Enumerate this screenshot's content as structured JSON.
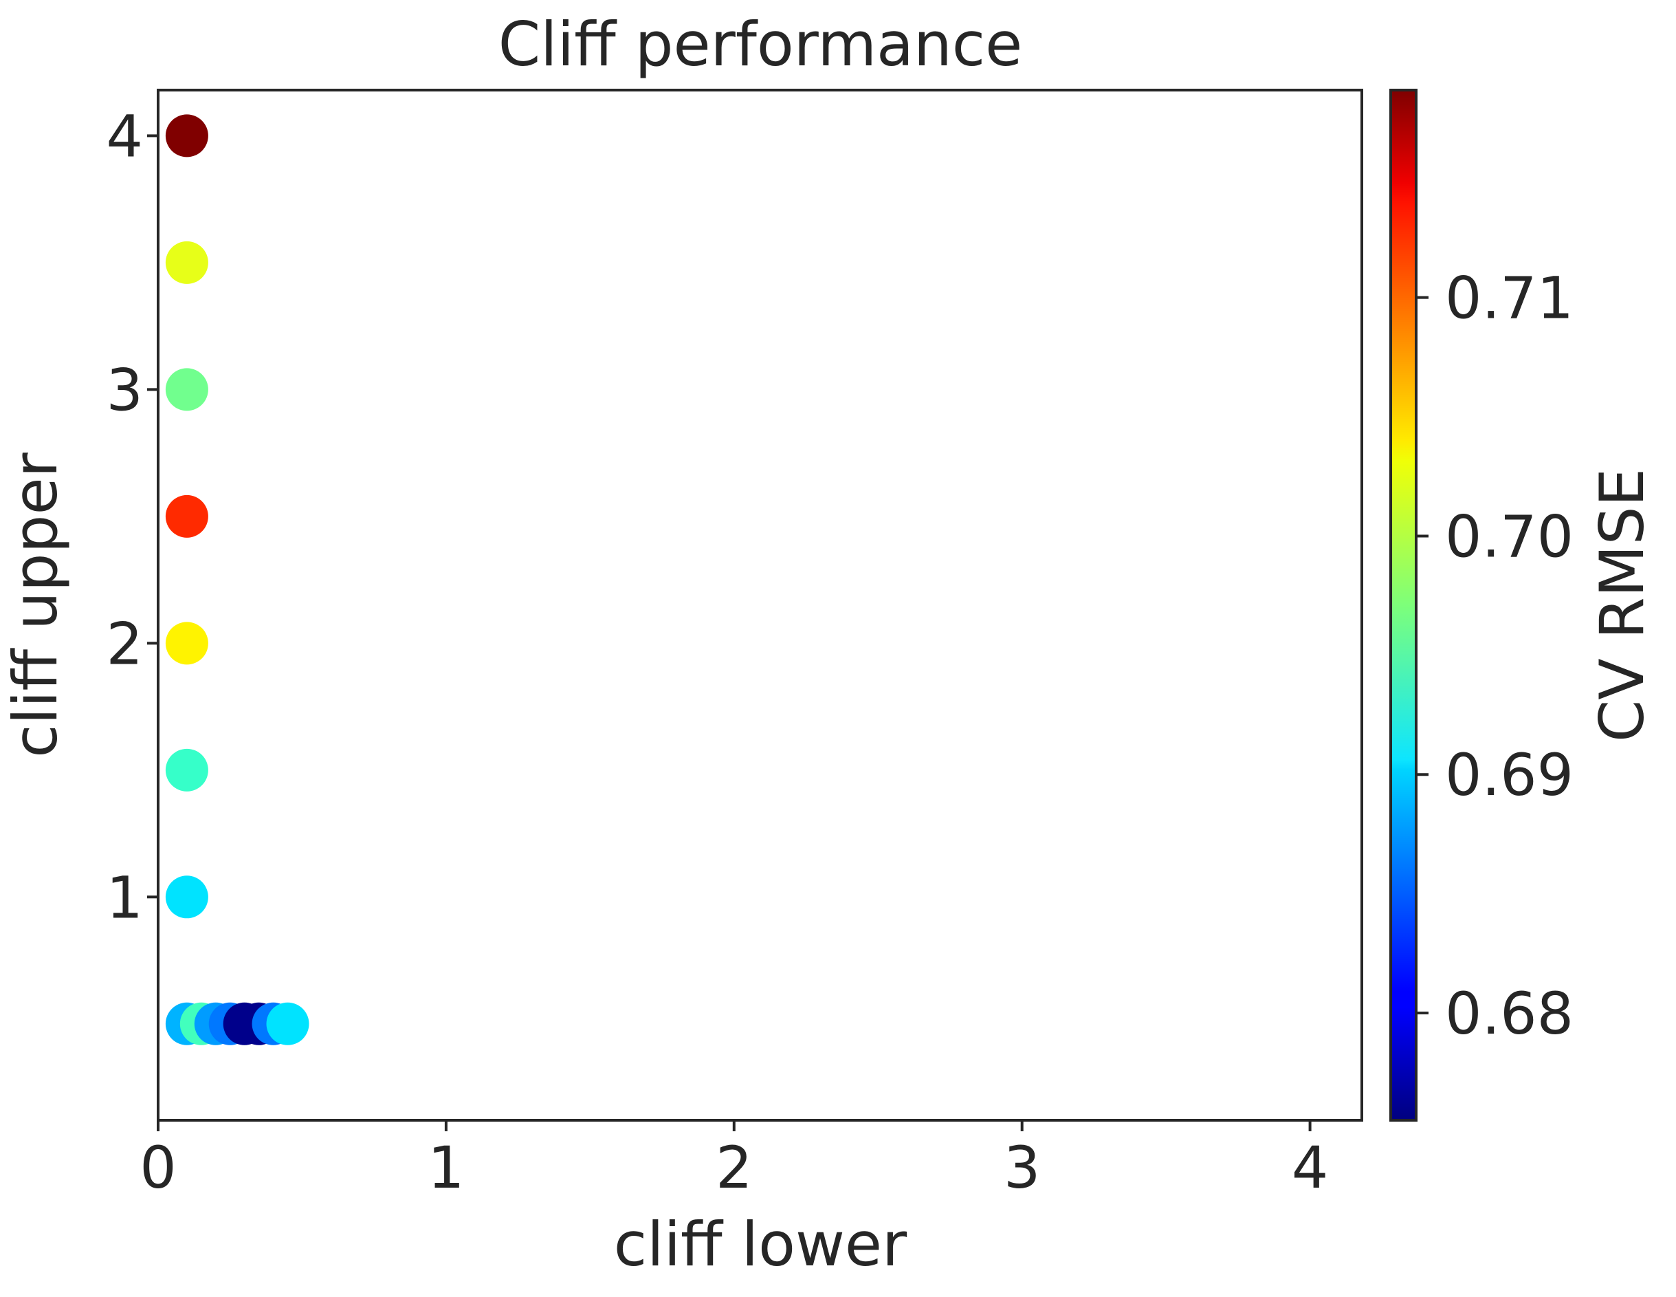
{
  "chart_data": {
    "type": "scatter",
    "title": "Cliff performance",
    "xlabel": "cliff lower",
    "ylabel": "cliff upper",
    "xlim": [
      0,
      4.18
    ],
    "ylim": [
      0.12,
      4.18
    ],
    "xticks": [
      0,
      1,
      2,
      3,
      4
    ],
    "yticks": [
      1,
      2,
      3,
      4
    ],
    "grid": false,
    "colorbar": {
      "label": "CV RMSE",
      "colormap": "jet",
      "range": [
        0.6755,
        0.7187
      ],
      "ticks": [
        0.68,
        0.69,
        0.7,
        0.71
      ],
      "tick_labels": [
        "0.68",
        "0.69",
        "0.70",
        "0.71"
      ]
    },
    "points": [
      {
        "x": 0.1,
        "y": 4.0,
        "value": 0.7187
      },
      {
        "x": 0.1,
        "y": 3.5,
        "value": 0.7015
      },
      {
        "x": 0.1,
        "y": 3.0,
        "value": 0.6965
      },
      {
        "x": 0.1,
        "y": 2.5,
        "value": 0.7115
      },
      {
        "x": 0.1,
        "y": 2.0,
        "value": 0.703
      },
      {
        "x": 0.1,
        "y": 1.5,
        "value": 0.694
      },
      {
        "x": 0.1,
        "y": 1.0,
        "value": 0.6905
      },
      {
        "x": 0.1,
        "y": 0.5,
        "value": 0.6885
      },
      {
        "x": 0.15,
        "y": 0.5,
        "value": 0.6945
      },
      {
        "x": 0.2,
        "y": 0.5,
        "value": 0.6875
      },
      {
        "x": 0.25,
        "y": 0.5,
        "value": 0.686
      },
      {
        "x": 0.3,
        "y": 0.5,
        "value": 0.676
      },
      {
        "x": 0.35,
        "y": 0.5,
        "value": 0.676
      },
      {
        "x": 0.4,
        "y": 0.5,
        "value": 0.686
      },
      {
        "x": 0.45,
        "y": 0.5,
        "value": 0.6905
      }
    ]
  }
}
